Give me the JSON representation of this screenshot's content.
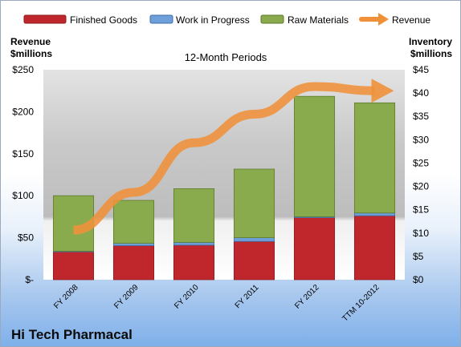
{
  "footer_title": "Hi Tech Pharmacal",
  "chart_data": {
    "type": "bar",
    "stacked": true,
    "title": "12-Month Periods",
    "ylabel_left": [
      "Revenue",
      "$millions"
    ],
    "ylabel_right": [
      "Inventory",
      "$millions"
    ],
    "categories": [
      "FY 2008",
      "FY 2009",
      "FY 2010",
      "FY 2011",
      "FY 2012",
      "TTM 10-2012"
    ],
    "series": [
      {
        "name": "Finished Goods",
        "axis": "right",
        "color": "#c0272d",
        "values": [
          6.0,
          7.3,
          7.4,
          8.2,
          13.3,
          13.7
        ]
      },
      {
        "name": "Work in Progress",
        "axis": "right",
        "color": "#6f9fd8",
        "values": [
          0.1,
          0.5,
          0.6,
          0.8,
          0.2,
          0.6
        ]
      },
      {
        "name": "Raw Materials",
        "axis": "right",
        "color": "#8aab4d",
        "values": [
          11.9,
          9.2,
          11.5,
          14.7,
          25.8,
          23.6
        ]
      },
      {
        "name": "Revenue",
        "axis": "left",
        "type": "line",
        "color": "#f0913a",
        "values": [
          59,
          104,
          163,
          197,
          230,
          225
        ]
      }
    ],
    "left_axis": {
      "min": 0,
      "max": 250,
      "ticks": [
        0,
        50,
        100,
        150,
        200,
        250
      ],
      "tick_labels": [
        "$-",
        "$50",
        "$100",
        "$150",
        "$200",
        "$250"
      ]
    },
    "right_axis": {
      "min": 0,
      "max": 45,
      "ticks": [
        0,
        5,
        10,
        15,
        20,
        25,
        30,
        35,
        40,
        45
      ],
      "tick_labels": [
        "$0",
        "$5",
        "$10",
        "$15",
        "$20",
        "$25",
        "$30",
        "$35",
        "$40",
        "$45"
      ]
    },
    "legend_position": "top",
    "grid": false
  }
}
